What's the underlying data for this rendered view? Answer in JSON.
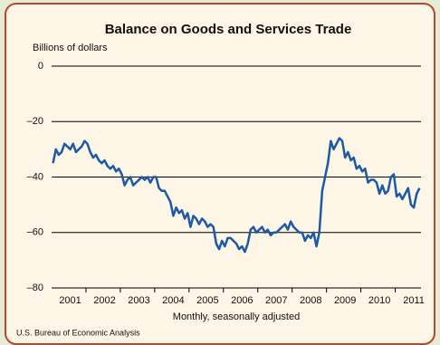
{
  "chart_data": {
    "type": "line",
    "title": "Balance on Goods and Services Trade",
    "y_label": "Billions of dollars",
    "x_label": "Monthly, seasonally adjusted",
    "source": "U.S. Bureau of Economic Analysis",
    "categories": [
      null,
      null,
      null,
      null,
      null,
      null,
      "2001",
      null,
      null,
      null,
      null,
      null,
      null,
      null,
      null,
      null,
      null,
      null,
      "2002",
      null,
      null,
      null,
      null,
      null,
      null,
      null,
      null,
      null,
      null,
      null,
      "2003",
      null,
      null,
      null,
      null,
      null,
      null,
      null,
      null,
      null,
      null,
      null,
      "2004",
      null,
      null,
      null,
      null,
      null,
      null,
      null,
      null,
      null,
      null,
      null,
      "2005",
      null,
      null,
      null,
      null,
      null,
      null,
      null,
      null,
      null,
      null,
      null,
      "2006",
      null,
      null,
      null,
      null,
      null,
      null,
      null,
      null,
      null,
      null,
      null,
      "2007",
      null,
      null,
      null,
      null,
      null,
      null,
      null,
      null,
      null,
      null,
      null,
      "2008",
      null,
      null,
      null,
      null,
      null,
      null,
      null,
      null,
      null,
      null,
      null,
      "2009",
      null,
      null,
      null,
      null,
      null,
      null,
      null,
      null,
      null,
      null,
      null,
      "2010",
      null,
      null,
      null,
      null,
      null,
      null,
      null,
      null,
      null,
      null,
      null,
      "2011",
      null,
      null
    ],
    "values": [
      -35,
      -30,
      -32,
      -31,
      -28,
      -29,
      -30,
      -28,
      -31,
      -30,
      -29,
      -27,
      -28,
      -31,
      -33,
      -32,
      -34,
      -35,
      -34,
      -36,
      -37,
      -36,
      -38,
      -37,
      -39,
      -43,
      -41,
      -40,
      -43,
      -42,
      -41,
      -40,
      -41,
      -40,
      -42,
      -40,
      -40,
      -44,
      -45,
      -45,
      -47,
      -49,
      -54,
      -51,
      -53,
      -52,
      -55,
      -53,
      -58,
      -54,
      -55,
      -57,
      -55,
      -56,
      -58,
      -57,
      -58,
      -64,
      -66,
      -63,
      -65,
      -62,
      -62,
      -63,
      -64,
      -66,
      -65,
      -67,
      -64,
      -59,
      -58,
      -60,
      -59,
      -58,
      -60,
      -59,
      -61,
      -60,
      -60,
      -59,
      -58,
      -57,
      -59,
      -56,
      -58,
      -59,
      -60,
      -60,
      -63,
      -61,
      -62,
      -60,
      -65,
      -60,
      -45,
      -40,
      -35,
      -27,
      -30,
      -28,
      -26,
      -27,
      -33,
      -31,
      -34,
      -33,
      -37,
      -36,
      -38,
      -37,
      -42,
      -41,
      -41,
      -42,
      -46,
      -43,
      -46,
      -45,
      -40,
      -39,
      -47,
      -46,
      -48,
      -46,
      -44,
      -50,
      -51,
      -46,
      -44
    ],
    "color": "#1c5aa6",
    "ylim": [
      -80,
      0
    ],
    "yticks": [
      {
        "value": 0,
        "label": "0"
      },
      {
        "value": -20,
        "label": "–20"
      },
      {
        "value": -40,
        "label": "–40"
      },
      {
        "value": -60,
        "label": "–60"
      },
      {
        "value": -80,
        "label": "–80"
      }
    ],
    "grid": true
  }
}
